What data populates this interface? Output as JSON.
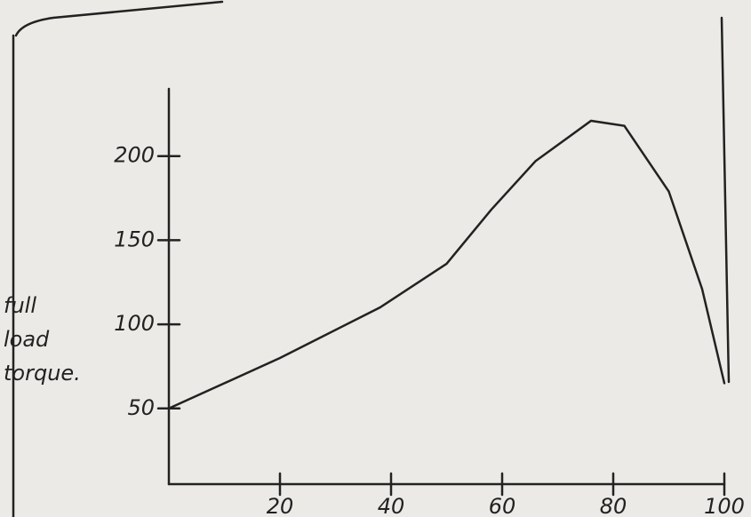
{
  "chart_data": {
    "type": "line",
    "ylabel": "full load torque.",
    "x": [
      0,
      20,
      38,
      50,
      58,
      66,
      76,
      82,
      90,
      96,
      100
    ],
    "series": [
      {
        "color": "#222222",
        "values": [
          50,
          80,
          110,
          136,
          168,
          197,
          221,
          218,
          179,
          121,
          65
        ]
      }
    ],
    "xlim": [
      0,
      100
    ],
    "ylim": [
      5,
      240
    ],
    "xticks": [
      20,
      40,
      60,
      80,
      100
    ],
    "yticks": [
      50,
      100,
      150,
      200
    ],
    "grid": false
  }
}
